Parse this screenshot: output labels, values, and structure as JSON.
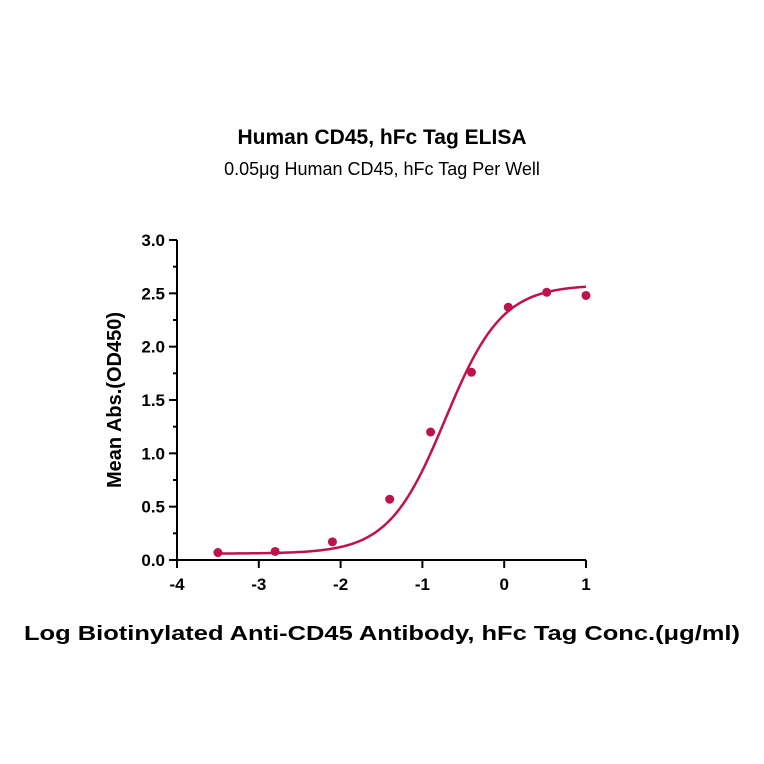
{
  "chart_data": {
    "type": "scatter",
    "title": "Human CD45, hFc Tag ELISA",
    "subtitle": "0.05μg Human CD45, hFc Tag Per Well",
    "xlabel": "Log Biotinylated Anti-CD45 Antibody, hFc Tag Conc.(μg/ml)",
    "ylabel": "Mean Abs.(OD450)",
    "xlim": [
      -4,
      1
    ],
    "ylim": [
      0,
      3
    ],
    "x_ticks": [
      "-4",
      "-3",
      "-2",
      "-1",
      "0",
      "1"
    ],
    "y_ticks": [
      "0.0",
      "0.5",
      "1.0",
      "1.5",
      "2.0",
      "2.5",
      "3.0"
    ],
    "grid": false,
    "color": "#c0124a",
    "points": {
      "x": [
        -3.5,
        -2.8,
        -2.1,
        -1.4,
        -0.9,
        -0.4,
        0.05,
        0.52,
        1.0
      ],
      "y": [
        0.07,
        0.08,
        0.17,
        0.57,
        1.2,
        1.76,
        2.37,
        2.51,
        2.48
      ]
    },
    "fit_curve": {
      "model": "4PL",
      "bottom": 0.06,
      "top": 2.58,
      "log_ec50": -0.72,
      "hill": 1.25
    }
  }
}
